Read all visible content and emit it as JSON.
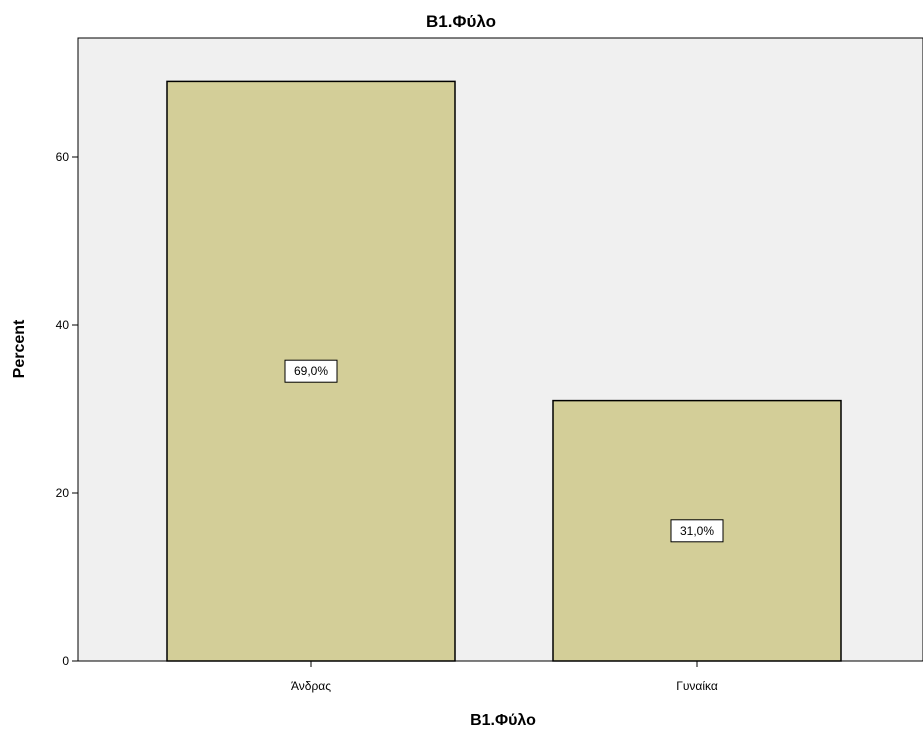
{
  "chart_data": {
    "type": "bar",
    "title": "B1.Φύλο",
    "xlabel": "B1.Φύλο",
    "ylabel": "Percent",
    "categories": [
      "Άνδρας",
      "Γυναίκα"
    ],
    "values": [
      69.0,
      31.0
    ],
    "data_labels": [
      "69,0%",
      "31,0%"
    ],
    "ylim": [
      0,
      75
    ],
    "yticks": [
      0,
      20,
      40,
      60
    ],
    "ytick_labels": [
      "0",
      "20",
      "40",
      "60"
    ],
    "grid": false,
    "legend": "none",
    "colors": {
      "bar_fill": "#d3ce98",
      "bar_stroke": "#000000",
      "plot_background": "#f0f0f0"
    }
  }
}
